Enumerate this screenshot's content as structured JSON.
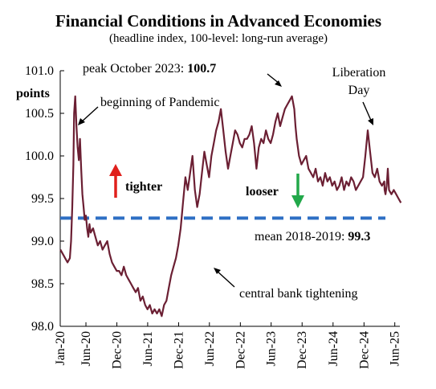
{
  "chart_data": {
    "type": "line",
    "title": "Financial Conditions in Advanced Economies",
    "subtitle": "(headline index, 100-level: long-run average)",
    "ylabel": "points",
    "ylim": [
      98.0,
      101.0
    ],
    "yticks": [
      "98.0",
      "98.5",
      "99.0",
      "99.5",
      "100.0",
      "100.5",
      "101.0"
    ],
    "xlim": [
      "2020-01",
      "2025-07"
    ],
    "xticks": [
      "Jan-20",
      "Jun-20",
      "Dec-20",
      "Jun-21",
      "Dec-21",
      "Jun-22",
      "Dec-22",
      "Jun-23",
      "Dec-23",
      "Jun-24",
      "Dec-24",
      "Jun-25"
    ],
    "grid": false,
    "series": [
      {
        "color": "#6b1f33",
        "x": [
          "2020-01-02",
          "2020-01-16",
          "2020-01-30",
          "2020-02-13",
          "2020-02-27",
          "2020-03-05",
          "2020-03-12",
          "2020-03-19",
          "2020-03-23",
          "2020-03-30",
          "2020-04-06",
          "2020-04-13",
          "2020-04-20",
          "2020-04-27",
          "2020-05-04",
          "2020-05-11",
          "2020-05-18",
          "2020-05-25",
          "2020-06-01",
          "2020-06-08",
          "2020-06-15",
          "2020-06-22",
          "2020-06-29",
          "2020-07-13",
          "2020-07-27",
          "2020-08-10",
          "2020-08-24",
          "2020-09-07",
          "2020-09-21",
          "2020-10-05",
          "2020-10-19",
          "2020-11-02",
          "2020-11-16",
          "2020-11-30",
          "2020-12-14",
          "2020-12-28",
          "2021-01-11",
          "2021-01-25",
          "2021-02-08",
          "2021-02-22",
          "2021-03-08",
          "2021-03-22",
          "2021-04-05",
          "2021-04-19",
          "2021-05-03",
          "2021-05-17",
          "2021-05-31",
          "2021-06-14",
          "2021-06-28",
          "2021-07-12",
          "2021-07-26",
          "2021-08-09",
          "2021-08-23",
          "2021-09-06",
          "2021-09-20",
          "2021-10-04",
          "2021-10-18",
          "2021-11-01",
          "2021-11-15",
          "2021-11-29",
          "2021-12-13",
          "2021-12-27",
          "2022-01-10",
          "2022-01-24",
          "2022-02-07",
          "2022-02-21",
          "2022-03-07",
          "2022-03-21",
          "2022-04-04",
          "2022-04-18",
          "2022-05-02",
          "2022-05-16",
          "2022-05-30",
          "2022-06-13",
          "2022-06-27",
          "2022-07-11",
          "2022-07-25",
          "2022-08-08",
          "2022-08-22",
          "2022-09-05",
          "2022-09-19",
          "2022-10-03",
          "2022-10-17",
          "2022-10-31",
          "2022-11-14",
          "2022-11-28",
          "2022-12-12",
          "2022-12-26",
          "2023-01-09",
          "2023-01-23",
          "2023-02-06",
          "2023-02-20",
          "2023-03-06",
          "2023-03-20",
          "2023-04-03",
          "2023-04-17",
          "2023-05-01",
          "2023-05-15",
          "2023-05-29",
          "2023-06-12",
          "2023-06-26",
          "2023-07-10",
          "2023-07-24",
          "2023-08-07",
          "2023-08-21",
          "2023-09-04",
          "2023-09-18",
          "2023-10-02",
          "2023-10-16",
          "2023-10-23",
          "2023-10-30",
          "2023-11-13",
          "2023-11-27",
          "2023-12-11",
          "2023-12-25",
          "2024-01-08",
          "2024-01-22",
          "2024-02-05",
          "2024-02-19",
          "2024-03-04",
          "2024-03-18",
          "2024-04-01",
          "2024-04-15",
          "2024-04-29",
          "2024-05-13",
          "2024-05-27",
          "2024-06-10",
          "2024-06-24",
          "2024-07-08",
          "2024-07-22",
          "2024-08-05",
          "2024-08-19",
          "2024-09-02",
          "2024-09-16",
          "2024-09-30",
          "2024-10-14",
          "2024-10-28",
          "2024-11-11",
          "2024-11-25",
          "2024-12-09",
          "2024-12-23",
          "2025-01-06",
          "2025-01-20",
          "2025-02-03",
          "2025-02-17",
          "2025-03-03",
          "2025-03-17",
          "2025-03-31",
          "2025-04-02",
          "2025-04-07",
          "2025-04-14",
          "2025-04-21",
          "2025-04-28",
          "2025-05-12",
          "2025-05-26",
          "2025-06-09",
          "2025-06-23",
          "2025-07-07"
        ],
        "values": [
          98.9,
          98.85,
          98.8,
          98.75,
          98.8,
          99.0,
          99.4,
          99.9,
          100.5,
          100.7,
          100.35,
          100.1,
          99.95,
          100.2,
          99.85,
          99.55,
          99.4,
          99.25,
          99.3,
          99.15,
          99.05,
          99.2,
          99.1,
          99.15,
          99.05,
          98.95,
          99.0,
          98.9,
          98.95,
          99.0,
          98.85,
          98.75,
          98.7,
          98.65,
          98.65,
          98.6,
          98.7,
          98.6,
          98.55,
          98.5,
          98.45,
          98.4,
          98.45,
          98.3,
          98.35,
          98.25,
          98.2,
          98.25,
          98.15,
          98.2,
          98.15,
          98.2,
          98.12,
          98.25,
          98.3,
          98.45,
          98.6,
          98.7,
          98.8,
          98.95,
          99.15,
          99.45,
          99.75,
          99.6,
          99.8,
          100.0,
          99.6,
          99.4,
          99.55,
          99.8,
          100.05,
          99.9,
          99.75,
          100.0,
          100.15,
          100.3,
          100.4,
          100.55,
          100.3,
          100.05,
          99.85,
          100.0,
          100.15,
          100.3,
          100.25,
          100.15,
          100.1,
          100.2,
          100.2,
          100.25,
          100.35,
          100.15,
          99.85,
          100.1,
          100.2,
          100.15,
          100.3,
          100.2,
          100.15,
          100.25,
          100.4,
          100.5,
          100.35,
          100.45,
          100.55,
          100.6,
          100.65,
          100.7,
          100.55,
          100.35,
          100.2,
          100.0,
          99.9,
          99.95,
          100.0,
          99.85,
          99.8,
          99.75,
          99.85,
          99.7,
          99.75,
          99.65,
          99.8,
          99.7,
          99.75,
          99.65,
          99.7,
          99.6,
          99.65,
          99.75,
          99.6,
          99.7,
          99.65,
          99.75,
          99.7,
          99.6,
          99.65,
          99.7,
          99.75,
          100.0,
          100.3,
          100.05,
          99.8,
          99.75,
          99.85,
          99.7,
          99.65,
          99.7,
          99.6,
          99.55,
          99.65,
          99.85,
          99.6,
          99.55,
          99.6,
          99.55,
          99.5,
          99.45
        ]
      }
    ],
    "reference_line": {
      "value": 99.27,
      "color": "#2e6fc4",
      "style": "dashed",
      "label_prefix": "mean 2018-2019: ",
      "label_value": "99.3"
    },
    "annotations": {
      "pandemic": "beginning  of Pandemic",
      "peak_prefix": "peak October 2023: ",
      "peak_value": "100.7",
      "liberation_line1": "Liberation",
      "liberation_line2": "Day",
      "tightening": "central bank tightening",
      "tighter": "tighter",
      "looser": "looser"
    },
    "colors": {
      "tighter_arrow": "#e0201c",
      "looser_arrow": "#22a84a"
    }
  }
}
